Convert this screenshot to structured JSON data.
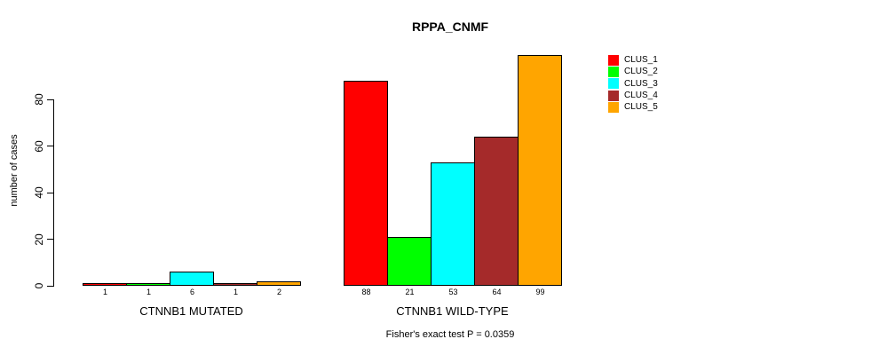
{
  "chart_data": {
    "type": "bar",
    "title": "RPPA_CNMF",
    "ylabel": "number of cases",
    "xlabel": "",
    "yticks": [
      0,
      20,
      40,
      60,
      80
    ],
    "ylim": [
      0,
      99
    ],
    "grid": false,
    "legend_position": "right-inside",
    "categories": [
      "CTNNB1 MUTATED",
      "CTNNB1 WILD-TYPE"
    ],
    "series": [
      {
        "name": "CLUS_1",
        "color": "#ff0000",
        "values": [
          1,
          88
        ]
      },
      {
        "name": "CLUS_2",
        "color": "#00ff00",
        "values": [
          1,
          21
        ]
      },
      {
        "name": "CLUS_3",
        "color": "#00ffff",
        "values": [
          6,
          53
        ]
      },
      {
        "name": "CLUS_4",
        "color": "#a52a2a",
        "values": [
          1,
          64
        ]
      },
      {
        "name": "CLUS_5",
        "color": "#ffa500",
        "values": [
          2,
          99
        ]
      }
    ],
    "bar_value_labels": [
      [
        "1",
        "1",
        "6",
        "1",
        "2"
      ],
      [
        "88",
        "21",
        "53",
        "64",
        "99"
      ]
    ],
    "footnote": "Fisher's exact test P = 0.0359"
  }
}
